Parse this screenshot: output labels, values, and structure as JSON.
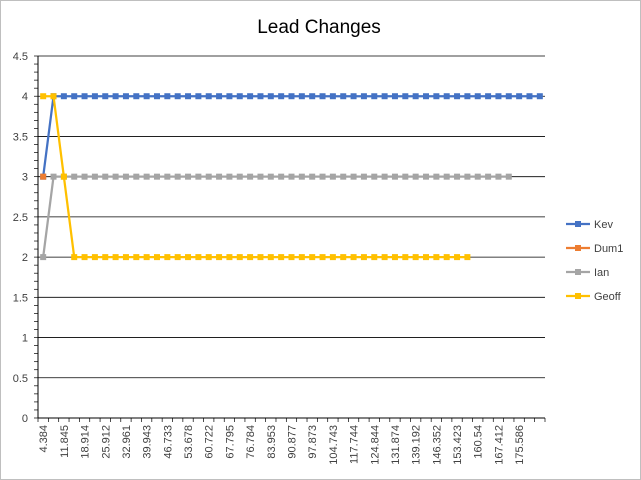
{
  "chart_data": {
    "type": "line",
    "title": "Lead Changes",
    "ylim": [
      0,
      4.5
    ],
    "y_ticks": [
      "0",
      "0.5",
      "1",
      "1.5",
      "2",
      "2.5",
      "3",
      "3.5",
      "4",
      "4.5"
    ],
    "x_tick_labels": [
      "4.384",
      "11.845",
      "18.914",
      "25.912",
      "32.961",
      "39.943",
      "46.733",
      "53.678",
      "60.722",
      "67.795",
      "76.784",
      "83.953",
      "90.877",
      "97.873",
      "104.743",
      "117.744",
      "124.844",
      "131.874",
      "139.192",
      "146.352",
      "153.423",
      "160.54",
      "167.412",
      "175.586"
    ],
    "grid": true,
    "legend_position": "right",
    "series": [
      {
        "name": "Kev",
        "color": "#4472C4",
        "values": [
          3,
          4,
          4,
          4,
          4,
          4,
          4,
          4,
          4,
          4,
          4,
          4,
          4,
          4,
          4,
          4,
          4,
          4,
          4,
          4,
          4,
          4,
          4,
          4,
          4,
          4,
          4,
          4,
          4,
          4,
          4,
          4,
          4,
          4,
          4,
          4,
          4,
          4,
          4,
          4,
          4,
          4,
          4,
          4,
          4,
          4,
          4,
          4,
          4
        ]
      },
      {
        "name": "Dum1",
        "color": "#ED7D31",
        "values": [
          3
        ]
      },
      {
        "name": "Ian",
        "color": "#A5A5A5",
        "values": [
          2,
          3,
          3,
          3,
          3,
          3,
          3,
          3,
          3,
          3,
          3,
          3,
          3,
          3,
          3,
          3,
          3,
          3,
          3,
          3,
          3,
          3,
          3,
          3,
          3,
          3,
          3,
          3,
          3,
          3,
          3,
          3,
          3,
          3,
          3,
          3,
          3,
          3,
          3,
          3,
          3,
          3,
          3,
          3,
          3,
          3
        ]
      },
      {
        "name": "Geoff",
        "color": "#FFC000",
        "values": [
          4,
          4,
          3,
          2,
          2,
          2,
          2,
          2,
          2,
          2,
          2,
          2,
          2,
          2,
          2,
          2,
          2,
          2,
          2,
          2,
          2,
          2,
          2,
          2,
          2,
          2,
          2,
          2,
          2,
          2,
          2,
          2,
          2,
          2,
          2,
          2,
          2,
          2,
          2,
          2,
          2,
          2
        ]
      }
    ]
  }
}
